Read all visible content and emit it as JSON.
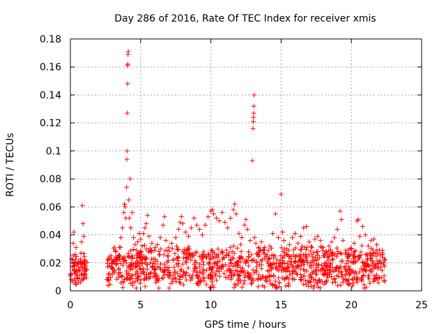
{
  "chart_data": {
    "type": "scatter",
    "title": "Day 286 of 2016, Rate Of TEC Index for receiver xmis",
    "xlabel": "GPS time / hours",
    "ylabel": "ROTI / TECUs",
    "xlim": [
      0,
      25
    ],
    "ylim": [
      0,
      0.18
    ],
    "xticks": [
      0,
      5,
      10,
      15,
      20,
      25
    ],
    "xtick_labels": [
      "0",
      "5",
      "10",
      "15",
      "20",
      "25"
    ],
    "yticks": [
      0,
      0.02,
      0.04,
      0.06,
      0.08,
      0.1,
      0.12,
      0.14,
      0.16,
      0.18
    ],
    "ytick_labels": [
      "0",
      "0.02",
      "0.04",
      "0.06",
      "0.08",
      "0.1",
      "0.12",
      "0.14",
      "0.16",
      "0.18"
    ],
    "grid": true,
    "marker": "+",
    "color": "#ff0000",
    "series": [
      {
        "name": "ROTI",
        "points": [
          [
            0.05,
            0.008
          ],
          [
            0.1,
            0.012
          ],
          [
            0.15,
            0.022
          ],
          [
            0.2,
            0.034
          ],
          [
            0.25,
            0.042
          ],
          [
            0.3,
            0.018
          ],
          [
            0.35,
            0.026
          ],
          [
            0.4,
            0.031
          ],
          [
            0.45,
            0.015
          ],
          [
            0.5,
            0.011
          ],
          [
            0.55,
            0.019
          ],
          [
            0.6,
            0.014
          ],
          [
            0.65,
            0.009
          ],
          [
            0.7,
            0.021
          ],
          [
            0.75,
            0.027
          ],
          [
            0.8,
            0.035
          ],
          [
            0.85,
            0.061
          ],
          [
            0.9,
            0.048
          ],
          [
            0.95,
            0.039
          ],
          [
            1.0,
            0.022
          ],
          [
            1.05,
            0.016
          ],
          [
            1.1,
            0.012
          ],
          [
            2.7,
            0.012
          ],
          [
            2.8,
            0.018
          ],
          [
            2.9,
            0.025
          ],
          [
            3.0,
            0.016
          ],
          [
            3.1,
            0.021
          ],
          [
            3.2,
            0.028
          ],
          [
            3.3,
            0.019
          ],
          [
            3.4,
            0.024
          ],
          [
            3.5,
            0.031
          ],
          [
            3.6,
            0.038
          ],
          [
            3.7,
            0.045
          ],
          [
            3.8,
            0.056
          ],
          [
            3.85,
            0.062
          ],
          [
            3.9,
            0.06
          ],
          [
            3.95,
            0.052
          ],
          [
            4.0,
            0.074
          ],
          [
            4.02,
            0.094
          ],
          [
            4.03,
            0.1
          ],
          [
            4.05,
            0.127
          ],
          [
            4.07,
            0.148
          ],
          [
            4.08,
            0.161
          ],
          [
            4.09,
            0.162
          ],
          [
            4.1,
            0.169
          ],
          [
            4.12,
            0.171
          ],
          [
            4.15,
            0.065
          ],
          [
            4.2,
            0.052
          ],
          [
            4.25,
            0.08
          ],
          [
            4.3,
            0.045
          ],
          [
            4.4,
            0.056
          ],
          [
            4.5,
            0.038
          ],
          [
            4.6,
            0.033
          ],
          [
            4.7,
            0.029
          ],
          [
            4.8,
            0.035
          ],
          [
            4.9,
            0.041
          ],
          [
            5.0,
            0.037
          ],
          [
            5.1,
            0.032
          ],
          [
            5.2,
            0.041
          ],
          [
            5.3,
            0.045
          ],
          [
            5.4,
            0.048
          ],
          [
            5.5,
            0.054
          ],
          [
            5.6,
            0.039
          ],
          [
            5.8,
            0.034
          ],
          [
            6.0,
            0.029
          ],
          [
            6.2,
            0.033
          ],
          [
            6.4,
            0.038
          ],
          [
            6.6,
            0.047
          ],
          [
            6.7,
            0.053
          ],
          [
            6.8,
            0.036
          ],
          [
            7.0,
            0.031
          ],
          [
            7.2,
            0.034
          ],
          [
            7.5,
            0.038
          ],
          [
            7.7,
            0.044
          ],
          [
            7.8,
            0.049
          ],
          [
            7.9,
            0.053
          ],
          [
            8.0,
            0.048
          ],
          [
            8.2,
            0.042
          ],
          [
            8.4,
            0.039
          ],
          [
            8.6,
            0.045
          ],
          [
            8.8,
            0.052
          ],
          [
            9.0,
            0.047
          ],
          [
            9.2,
            0.044
          ],
          [
            9.4,
            0.04
          ],
          [
            9.6,
            0.047
          ],
          [
            9.8,
            0.053
          ],
          [
            10.0,
            0.057
          ],
          [
            10.1,
            0.058
          ],
          [
            10.2,
            0.055
          ],
          [
            10.4,
            0.052
          ],
          [
            10.6,
            0.05
          ],
          [
            10.8,
            0.056
          ],
          [
            11.0,
            0.049
          ],
          [
            11.2,
            0.045
          ],
          [
            11.4,
            0.052
          ],
          [
            11.6,
            0.058
          ],
          [
            11.7,
            0.062
          ],
          [
            11.8,
            0.055
          ],
          [
            12.0,
            0.041
          ],
          [
            12.2,
            0.038
          ],
          [
            12.4,
            0.047
          ],
          [
            12.5,
            0.051
          ],
          [
            12.6,
            0.044
          ],
          [
            12.8,
            0.036
          ],
          [
            12.95,
            0.093
          ],
          [
            13.0,
            0.116
          ],
          [
            13.02,
            0.121
          ],
          [
            13.03,
            0.124
          ],
          [
            13.05,
            0.127
          ],
          [
            13.06,
            0.132
          ],
          [
            13.08,
            0.14
          ],
          [
            13.1,
            0.038
          ],
          [
            13.2,
            0.034
          ],
          [
            13.4,
            0.031
          ],
          [
            13.6,
            0.035
          ],
          [
            13.8,
            0.029
          ],
          [
            14.0,
            0.026
          ],
          [
            14.2,
            0.032
          ],
          [
            14.4,
            0.041
          ],
          [
            14.6,
            0.055
          ],
          [
            14.8,
            0.038
          ],
          [
            15.0,
            0.069
          ],
          [
            15.1,
            0.042
          ],
          [
            15.2,
            0.036
          ],
          [
            15.4,
            0.03
          ],
          [
            15.6,
            0.033
          ],
          [
            15.8,
            0.038
          ],
          [
            16.0,
            0.041
          ],
          [
            16.2,
            0.034
          ],
          [
            16.4,
            0.039
          ],
          [
            16.6,
            0.045
          ],
          [
            16.8,
            0.046
          ],
          [
            17.0,
            0.035
          ],
          [
            17.2,
            0.031
          ],
          [
            17.4,
            0.037
          ],
          [
            17.6,
            0.039
          ],
          [
            17.8,
            0.036
          ],
          [
            18.0,
            0.031
          ],
          [
            18.2,
            0.028
          ],
          [
            18.4,
            0.032
          ],
          [
            18.6,
            0.035
          ],
          [
            18.8,
            0.038
          ],
          [
            19.0,
            0.044
          ],
          [
            19.2,
            0.057
          ],
          [
            19.3,
            0.051
          ],
          [
            19.4,
            0.036
          ],
          [
            19.6,
            0.029
          ],
          [
            19.8,
            0.026
          ],
          [
            20.0,
            0.03
          ],
          [
            20.2,
            0.034
          ],
          [
            20.4,
            0.05
          ],
          [
            20.5,
            0.051
          ],
          [
            20.6,
            0.039
          ],
          [
            20.8,
            0.046
          ],
          [
            21.0,
            0.04
          ],
          [
            21.2,
            0.032
          ],
          [
            21.4,
            0.036
          ],
          [
            21.6,
            0.037
          ],
          [
            21.8,
            0.033
          ],
          [
            22.0,
            0.029
          ],
          [
            22.2,
            0.026
          ],
          [
            22.4,
            0.022
          ]
        ]
      }
    ],
    "dense_segments": [
      {
        "x_from": 0.0,
        "x_to": 1.2,
        "y_base": 0.016,
        "y_spread": 0.012
      },
      {
        "x_from": 2.6,
        "x_to": 22.4,
        "y_base": 0.017,
        "y_spread": 0.014
      }
    ]
  }
}
